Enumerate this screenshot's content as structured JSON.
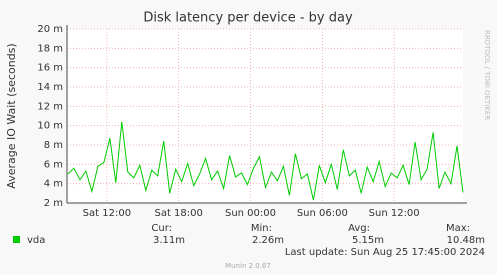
{
  "chart_data": {
    "type": "line",
    "title": "Disk latency per device - by day",
    "y_label": "Average IO Wait (seconds)",
    "side_text": "RRDTOOL / TOBI OETIKER",
    "x": [
      8.75,
      9.25,
      9.75,
      10.25,
      10.75,
      11.25,
      11.75,
      12.25,
      12.75,
      13.25,
      13.75,
      14.25,
      14.75,
      15.25,
      15.75,
      16.25,
      16.75,
      17.25,
      17.75,
      18.25,
      18.75,
      19.25,
      19.75,
      20.25,
      20.75,
      21.25,
      21.75,
      22.25,
      22.75,
      23.25,
      23.75,
      24.25,
      24.75,
      25.25,
      25.75,
      26.25,
      26.75,
      27.25,
      27.75,
      28.25,
      28.75,
      29.25,
      29.75,
      30.25,
      30.75,
      31.25,
      31.75,
      32.25,
      32.75,
      33.25,
      33.75,
      34.25,
      34.75,
      35.25,
      35.75,
      36.25,
      36.75,
      37.25,
      37.75,
      38.25,
      38.75,
      39.25,
      39.75,
      40.25,
      40.75,
      41.25,
      41.75
    ],
    "series": [
      {
        "name": "vda",
        "color": "#00cc00",
        "values": [
          5.0,
          5.6,
          4.4,
          5.3,
          3.2,
          5.8,
          6.2,
          8.7,
          4.1,
          10.4,
          5.2,
          4.6,
          5.9,
          3.3,
          5.4,
          4.8,
          8.4,
          3.0,
          5.5,
          4.2,
          6.1,
          3.8,
          5.0,
          6.6,
          4.4,
          5.3,
          3.5,
          6.9,
          4.7,
          5.1,
          3.9,
          5.6,
          6.8,
          3.6,
          5.2,
          4.3,
          5.8,
          2.8,
          7.1,
          4.5,
          5.0,
          2.3,
          5.9,
          4.1,
          6.0,
          3.4,
          7.5,
          4.8,
          5.4,
          3.0,
          5.7,
          4.2,
          6.3,
          3.7,
          5.1,
          4.6,
          5.9,
          3.9,
          8.3,
          4.4,
          5.5,
          9.3,
          3.5,
          5.2,
          4.0,
          7.9,
          3.1
        ]
      }
    ],
    "xlim": [
      8.67,
      41.75
    ],
    "xticks": [
      {
        "value": 12,
        "label": "Sat 12:00"
      },
      {
        "value": 18,
        "label": "Sat 18:00"
      },
      {
        "value": 24,
        "label": "Sun 00:00"
      },
      {
        "value": 30,
        "label": "Sun 06:00"
      },
      {
        "value": 36,
        "label": "Sun 12:00"
      }
    ],
    "ylim": [
      2,
      20
    ],
    "yticks": [
      {
        "value": 2,
        "label": "2 m"
      },
      {
        "value": 4,
        "label": "4 m"
      },
      {
        "value": 6,
        "label": "6 m"
      },
      {
        "value": 8,
        "label": "8 m"
      },
      {
        "value": 10,
        "label": "10 m"
      },
      {
        "value": 12,
        "label": "12 m"
      },
      {
        "value": 14,
        "label": "14 m"
      },
      {
        "value": 16,
        "label": "16 m"
      },
      {
        "value": 18,
        "label": "18 m"
      },
      {
        "value": 20,
        "label": "20 m"
      }
    ],
    "grid": true,
    "legend": {
      "headers": [
        "Cur:",
        "Min:",
        "Avg:",
        "Max:"
      ],
      "values": [
        "3.11m",
        "2.26m",
        "5.15m",
        "10.48m"
      ]
    },
    "last_update": "Last update: Sun Aug 25 17:45:00 2024",
    "footer": "Munin 2.0.67"
  }
}
